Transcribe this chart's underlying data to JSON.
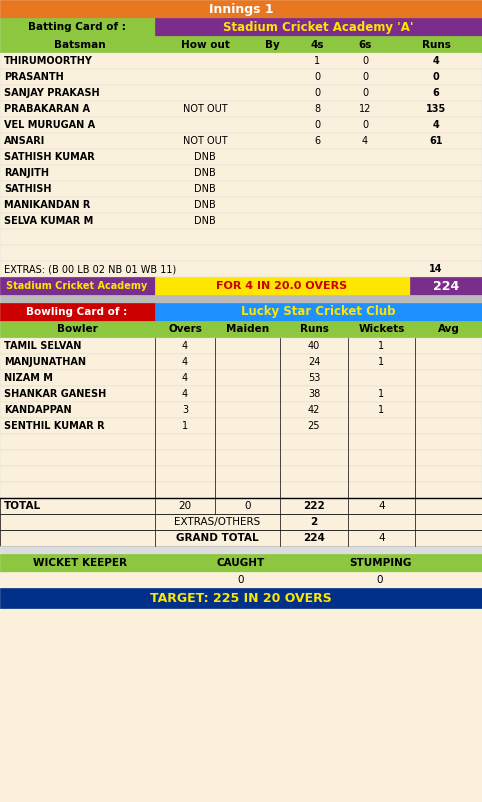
{
  "innings_title": "Innings 1",
  "batting_team": "Stadium Cricket Academy 'A'",
  "batting_label": "Batting Card of :",
  "bat_headers": [
    "Batsman",
    "How out",
    "By",
    "4s",
    "6s",
    "Runs"
  ],
  "batsmen": [
    [
      "THIRUMOORTHY",
      "",
      "",
      "1",
      "0",
      "4"
    ],
    [
      "PRASANTH",
      "",
      "",
      "0",
      "0",
      "0"
    ],
    [
      "SANJAY PRAKASH",
      "",
      "",
      "0",
      "0",
      "6"
    ],
    [
      "PRABAKARAN A",
      "NOT OUT",
      "",
      "8",
      "12",
      "135"
    ],
    [
      "VEL MURUGAN A",
      "",
      "",
      "0",
      "0",
      "4"
    ],
    [
      "ANSARI",
      "NOT OUT",
      "",
      "6",
      "4",
      "61"
    ],
    [
      "SATHISH KUMAR",
      "DNB",
      "",
      "",
      "",
      ""
    ],
    [
      "RANJITH",
      "DNB",
      "",
      "",
      "",
      ""
    ],
    [
      "SATHISH",
      "DNB",
      "",
      "",
      "",
      ""
    ],
    [
      "MANIKANDAN R",
      "DNB",
      "",
      "",
      "",
      ""
    ],
    [
      "SELVA KUMAR M",
      "DNB",
      "",
      "",
      "",
      ""
    ]
  ],
  "extras_text": "EXTRAS: (B 00 LB 02 NB 01 WB 11)",
  "extras_val": "14",
  "summary_team": "Stadium Cricket Academy",
  "summary_mid": "FOR 4 IN 20.0 OVERS",
  "summary_score": "224",
  "bowling_label": "Bowling Card of :",
  "bowling_team": "Lucky Star Cricket Club",
  "bowl_headers": [
    "Bowler",
    "Overs",
    "Maiden",
    "Runs",
    "Wickets",
    "Avg"
  ],
  "bowlers": [
    [
      "TAMIL SELVAN",
      "4",
      "",
      "40",
      "1",
      ""
    ],
    [
      "MANJUNATHAN",
      "4",
      "",
      "24",
      "1",
      ""
    ],
    [
      "NIZAM M",
      "4",
      "",
      "53",
      "",
      ""
    ],
    [
      "SHANKAR GANESH",
      "4",
      "",
      "38",
      "1",
      ""
    ],
    [
      "KANDAPPAN",
      "3",
      "",
      "42",
      "1",
      ""
    ],
    [
      "SENTHIL KUMAR R",
      "1",
      "",
      "25",
      "",
      ""
    ]
  ],
  "total_row": [
    "TOTAL",
    "20",
    "0",
    "222",
    "4",
    ""
  ],
  "extras_row": [
    "",
    "EXTRAS/OTHERS",
    "",
    "2",
    "",
    ""
  ],
  "grand_total_row": [
    "",
    "GRAND TOTAL",
    "",
    "224",
    "4",
    ""
  ],
  "wk_label": "WICKET KEEPER",
  "caught_label": "CAUGHT",
  "stumping_label": "STUMPING",
  "caught_val": "0",
  "stumping_val": "0",
  "target_text": "TARGET: 225 IN 20 OVERS",
  "colors": {
    "orange": "#E87722",
    "green_header": "#8DC63F",
    "purple": "#7B2D8B",
    "yellow": "#FFE600",
    "blue": "#1E90FF",
    "red": "#CC0000",
    "dark_blue": "#003087",
    "bg_cream": "#FAF0DC",
    "row_bg": "#FAF0DC",
    "grey_sep": "#BBBBBB"
  }
}
